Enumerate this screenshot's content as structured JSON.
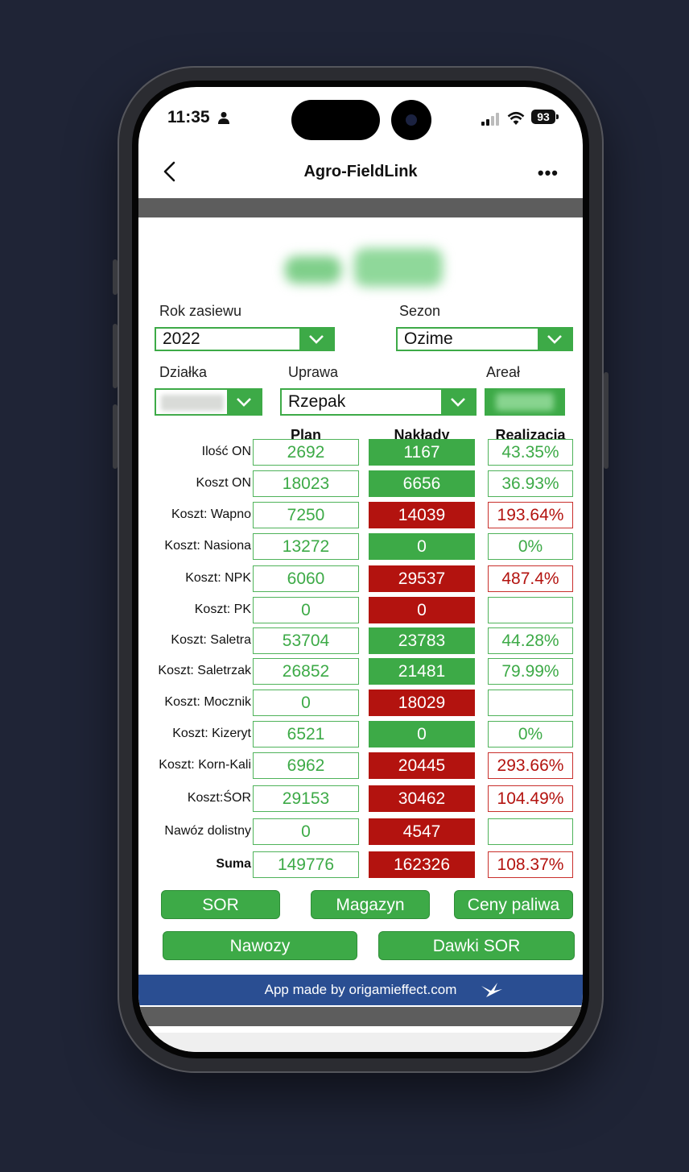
{
  "status": {
    "time": "11:35",
    "battery": "93"
  },
  "nav": {
    "title": "Agro-FieldLink"
  },
  "filters": {
    "rok_label": "Rok zasiewu",
    "rok_value": "2022",
    "sezon_label": "Sezon",
    "sezon_value": "Ozime",
    "dzialka_label": "Działka",
    "uprawa_label": "Uprawa",
    "uprawa_value": "Rzepak",
    "areal_label": "Areał"
  },
  "table": {
    "headers": [
      "Plan",
      "Nakłady",
      "Realizacja"
    ],
    "rows": [
      {
        "label": "Ilość ON",
        "plan": "2692",
        "naklady": "1167",
        "naklady_status": "green",
        "realizacja": "43.35%",
        "realizacja_status": "green"
      },
      {
        "label": "Koszt ON",
        "plan": "18023",
        "naklady": "6656",
        "naklady_status": "green",
        "realizacja": "36.93%",
        "realizacja_status": "green"
      },
      {
        "label": "Koszt: Wapno",
        "plan": "7250",
        "naklady": "14039",
        "naklady_status": "red",
        "realizacja": "193.64%",
        "realizacja_status": "red"
      },
      {
        "label": "Koszt: Nasiona",
        "plan": "13272",
        "naklady": "0",
        "naklady_status": "green",
        "realizacja": "0%",
        "realizacja_status": "green"
      },
      {
        "label": "Koszt: NPK",
        "plan": "6060",
        "naklady": "29537",
        "naklady_status": "red",
        "realizacja": "487.4%",
        "realizacja_status": "red"
      },
      {
        "label": "Koszt: PK",
        "plan": "0",
        "naklady": "0",
        "naklady_status": "red",
        "realizacja": "",
        "realizacja_status": "green"
      },
      {
        "label": "Koszt: Saletra",
        "plan": "53704",
        "naklady": "23783",
        "naklady_status": "green",
        "realizacja": "44.28%",
        "realizacja_status": "green"
      },
      {
        "label": "Koszt: Saletrzak",
        "plan": "26852",
        "naklady": "21481",
        "naklady_status": "green",
        "realizacja": "79.99%",
        "realizacja_status": "green"
      },
      {
        "label": "Koszt: Mocznik",
        "plan": "0",
        "naklady": "18029",
        "naklady_status": "red",
        "realizacja": "",
        "realizacja_status": "green"
      },
      {
        "label": "Koszt: Kizeryt",
        "plan": "6521",
        "naklady": "0",
        "naklady_status": "green",
        "realizacja": "0%",
        "realizacja_status": "green"
      },
      {
        "label": "Koszt: Korn-Kali",
        "plan": "6962",
        "naklady": "20445",
        "naklady_status": "red",
        "realizacja": "293.66%",
        "realizacja_status": "red"
      },
      {
        "label": "Koszt:ŚOR",
        "plan": "29153",
        "naklady": "30462",
        "naklady_status": "red",
        "realizacja": "104.49%",
        "realizacja_status": "red"
      },
      {
        "label": "Nawóz dolistny",
        "plan": "0",
        "naklady": "4547",
        "naklady_status": "red",
        "realizacja": "",
        "realizacja_status": "green"
      },
      {
        "label": "Suma",
        "plan": "149776",
        "naklady": "162326",
        "naklady_status": "red",
        "realizacja": "108.37%",
        "realizacja_status": "red"
      }
    ]
  },
  "buttons": {
    "sor": "SOR",
    "magazyn": "Magazyn",
    "ceny": "Ceny paliwa",
    "nawozy": "Nawozy",
    "dawki": "Dawki SOR"
  },
  "footer": {
    "text": "App made by origamieffect.com"
  },
  "colors": {
    "green": "#3daa47",
    "red": "#b3130f",
    "footer_blue": "#2a4e92"
  }
}
